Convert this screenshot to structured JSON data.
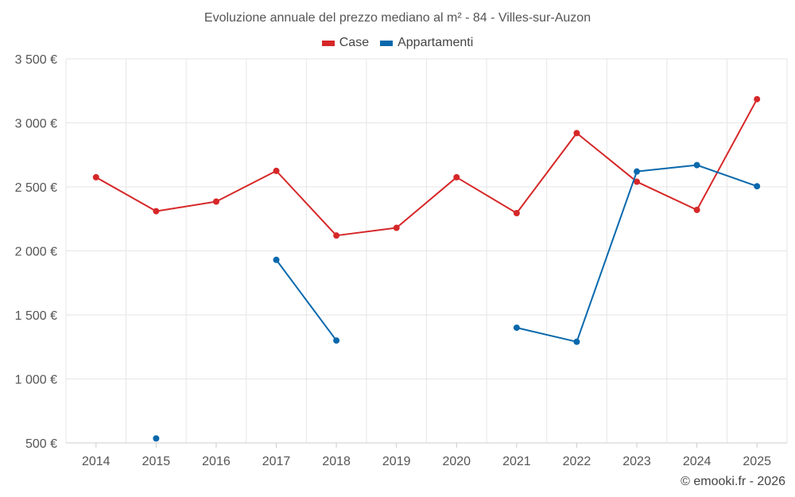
{
  "chart_data": {
    "type": "line",
    "title": "Evoluzione annuale del prezzo mediano al m² - 84 - Villes-sur-Auzon",
    "categories": [
      "2014",
      "2015",
      "2016",
      "2017",
      "2018",
      "2019",
      "2020",
      "2021",
      "2022",
      "2023",
      "2024",
      "2025"
    ],
    "y_ticks": [
      500,
      1000,
      1500,
      2000,
      2500,
      3000,
      3500
    ],
    "y_tick_labels": [
      "500 €",
      "1 000 €",
      "1 500 €",
      "2 000 €",
      "2 500 €",
      "3 000 €",
      "3 500 €"
    ],
    "ylim": [
      500,
      3500
    ],
    "grid": true,
    "legend_position": "top-center",
    "series": [
      {
        "name": "Case",
        "color": "#d62728",
        "values": [
          2575,
          2310,
          2385,
          2625,
          2120,
          2180,
          2575,
          2295,
          2920,
          2540,
          2320,
          3185
        ]
      },
      {
        "name": "Appartamenti",
        "color": "#0868ac",
        "values": [
          null,
          535,
          null,
          1930,
          1300,
          null,
          null,
          1400,
          1290,
          2620,
          2670,
          2505
        ]
      }
    ]
  },
  "credit": "© emooki.fr - 2026"
}
